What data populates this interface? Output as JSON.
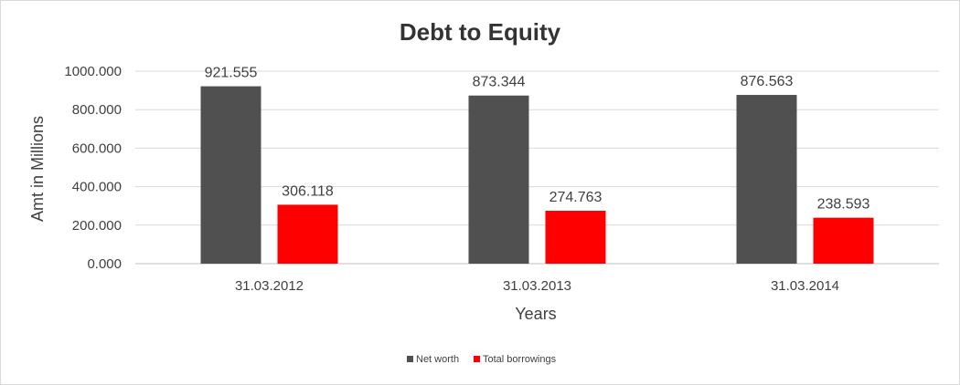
{
  "chart_data": {
    "type": "bar",
    "title": "Debt to Equity",
    "xlabel": "Years",
    "ylabel": "Amt in Millions",
    "categories": [
      "31.03.2012",
      "31.03.2013",
      "31.03.2014"
    ],
    "series": [
      {
        "name": "Net worth",
        "values": [
          921.555,
          873.344,
          876.563
        ],
        "labels": [
          "921.555",
          "873.344",
          "876.563"
        ],
        "color": "#505050"
      },
      {
        "name": "Total borrowings",
        "values": [
          306.118,
          274.763,
          238.593
        ],
        "labels": [
          "306.118",
          "274.763",
          "238.593"
        ],
        "color": "#ff0000"
      }
    ],
    "ylim": [
      0,
      1000
    ],
    "yticks": [
      {
        "value": 0,
        "label": "0.000"
      },
      {
        "value": 200,
        "label": "200.000"
      },
      {
        "value": 400,
        "label": "400.000"
      },
      {
        "value": 600,
        "label": "600.000"
      },
      {
        "value": 800,
        "label": "800.000"
      },
      {
        "value": 1000,
        "label": "1000.000"
      }
    ],
    "grid": true,
    "legend_position": "bottom"
  }
}
